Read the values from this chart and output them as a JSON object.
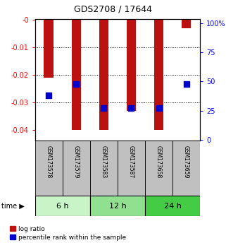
{
  "title": "GDS2708 / 17644",
  "samples": [
    "GSM173578",
    "GSM173579",
    "GSM173583",
    "GSM173587",
    "GSM173658",
    "GSM173659"
  ],
  "log_ratio": [
    -0.021,
    -0.04,
    -0.04,
    -0.033,
    -0.04,
    -0.003
  ],
  "percentile_rank": [
    38,
    48,
    27,
    27,
    27,
    48
  ],
  "groups": [
    {
      "label": "6 h",
      "indices": [
        0,
        1
      ],
      "color": "#c8f4c8"
    },
    {
      "label": "12 h",
      "indices": [
        2,
        3
      ],
      "color": "#90e090"
    },
    {
      "label": "24 h",
      "indices": [
        4,
        5
      ],
      "color": "#44cc44"
    }
  ],
  "ylim_left": [
    -0.044,
    0.0005
  ],
  "ylim_right": [
    -1.0,
    104.0
  ],
  "yticks_left": [
    0.0,
    -0.01,
    -0.02,
    -0.03,
    -0.04
  ],
  "ytick_labels_left": [
    "-0",
    "-0.01",
    "-0.02",
    "-0.03",
    "-0.04"
  ],
  "yticks_right": [
    0,
    25,
    50,
    75,
    100
  ],
  "ytick_labels_right": [
    "0",
    "25",
    "50",
    "75",
    "100%"
  ],
  "bar_color": "#bb1111",
  "dot_color": "#0000cc",
  "bar_width": 0.35,
  "dot_size": 28,
  "time_label": "time",
  "legend_log_ratio": "log ratio",
  "legend_percentile": "percentile rank within the sample",
  "background_label": "#c0c0c0",
  "group_colors": [
    "#c8f4c8",
    "#90e090",
    "#44cc44"
  ]
}
